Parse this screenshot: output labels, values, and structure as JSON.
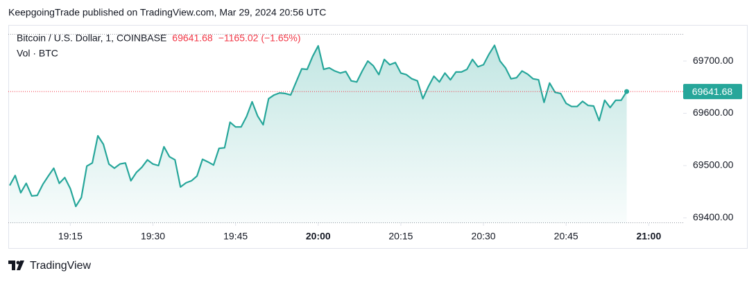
{
  "header": {
    "text": "KeepgoingTrade published on TradingView.com, Mar 29, 2024 20:56 UTC"
  },
  "chart_data": {
    "type": "area",
    "title": "Bitcoin / U.S. Dollar, 1, COINBASE",
    "change": "−1165.02 (−1.65%)",
    "volume_label": "Vol · BTC",
    "color": "#26a69a",
    "change_color": "#f23645",
    "x": [
      "19:04",
      "19:05",
      "19:06",
      "19:07",
      "19:08",
      "19:09",
      "19:10",
      "19:11",
      "19:12",
      "19:13",
      "19:14",
      "19:15",
      "19:16",
      "19:17",
      "19:18",
      "19:19",
      "19:20",
      "19:21",
      "19:22",
      "19:23",
      "19:24",
      "19:25",
      "19:26",
      "19:27",
      "19:28",
      "19:29",
      "19:30",
      "19:31",
      "19:32",
      "19:33",
      "19:34",
      "19:35",
      "19:36",
      "19:37",
      "19:38",
      "19:39",
      "19:40",
      "19:41",
      "19:42",
      "19:43",
      "19:44",
      "19:45",
      "19:46",
      "19:47",
      "19:48",
      "19:49",
      "19:50",
      "19:51",
      "19:52",
      "19:53",
      "19:54",
      "19:55",
      "19:56",
      "19:57",
      "19:58",
      "19:59",
      "20:00",
      "20:01",
      "20:02",
      "20:03",
      "20:04",
      "20:05",
      "20:06",
      "20:07",
      "20:08",
      "20:09",
      "20:10",
      "20:11",
      "20:12",
      "20:13",
      "20:14",
      "20:15",
      "20:16",
      "20:17",
      "20:18",
      "20:19",
      "20:20",
      "20:21",
      "20:22",
      "20:23",
      "20:24",
      "20:25",
      "20:26",
      "20:27",
      "20:28",
      "20:29",
      "20:30",
      "20:31",
      "20:32",
      "20:33",
      "20:34",
      "20:35",
      "20:36",
      "20:37",
      "20:38",
      "20:39",
      "20:40",
      "20:41",
      "20:42",
      "20:43",
      "20:44",
      "20:45",
      "20:46",
      "20:47",
      "20:48",
      "20:49",
      "20:50",
      "20:51",
      "20:52",
      "20:53",
      "20:54",
      "20:55",
      "20:56"
    ],
    "values": [
      69462,
      69481,
      69448,
      69466,
      69442,
      69443,
      69464,
      69480,
      69495,
      69466,
      69477,
      69456,
      69422,
      69439,
      69499,
      69505,
      69557,
      69541,
      69503,
      69495,
      69503,
      69505,
      69471,
      69487,
      69497,
      69511,
      69503,
      69500,
      69536,
      69517,
      69511,
      69459,
      69467,
      69471,
      69480,
      69512,
      69507,
      69501,
      69533,
      69534,
      69583,
      69574,
      69574,
      69594,
      69622,
      69595,
      69578,
      69628,
      69635,
      69639,
      69638,
      69635,
      69660,
      69685,
      69684,
      69709,
      69729,
      69684,
      69687,
      69681,
      69677,
      69680,
      69662,
      69660,
      69681,
      69700,
      69691,
      69674,
      69703,
      69693,
      69697,
      69677,
      69674,
      69666,
      69662,
      69628,
      69651,
      69671,
      69660,
      69677,
      69664,
      69679,
      69679,
      69684,
      69703,
      69689,
      69693,
      69713,
      69730,
      69700,
      69687,
      69666,
      69668,
      69681,
      69675,
      69666,
      69664,
      69621,
      69658,
      69640,
      69638,
      69619,
      69613,
      69613,
      69623,
      69615,
      69614,
      69586,
      69625,
      69611,
      69625,
      69625,
      69641.68
    ],
    "xlim": [
      "19:04",
      "21:06"
    ],
    "xticks": [
      "19:15",
      "19:30",
      "19:45",
      "20:00",
      "20:15",
      "20:30",
      "20:45",
      "21:00"
    ],
    "ylim": [
      69390,
      69769
    ],
    "yticks": [
      {
        "value": 69400,
        "label": "69400.00"
      },
      {
        "value": 69500,
        "label": "69500.00"
      },
      {
        "value": 69600,
        "label": "69600.00"
      },
      {
        "value": 69700,
        "label": "69700.00"
      }
    ]
  },
  "footer": {
    "brand": "TradingView"
  }
}
